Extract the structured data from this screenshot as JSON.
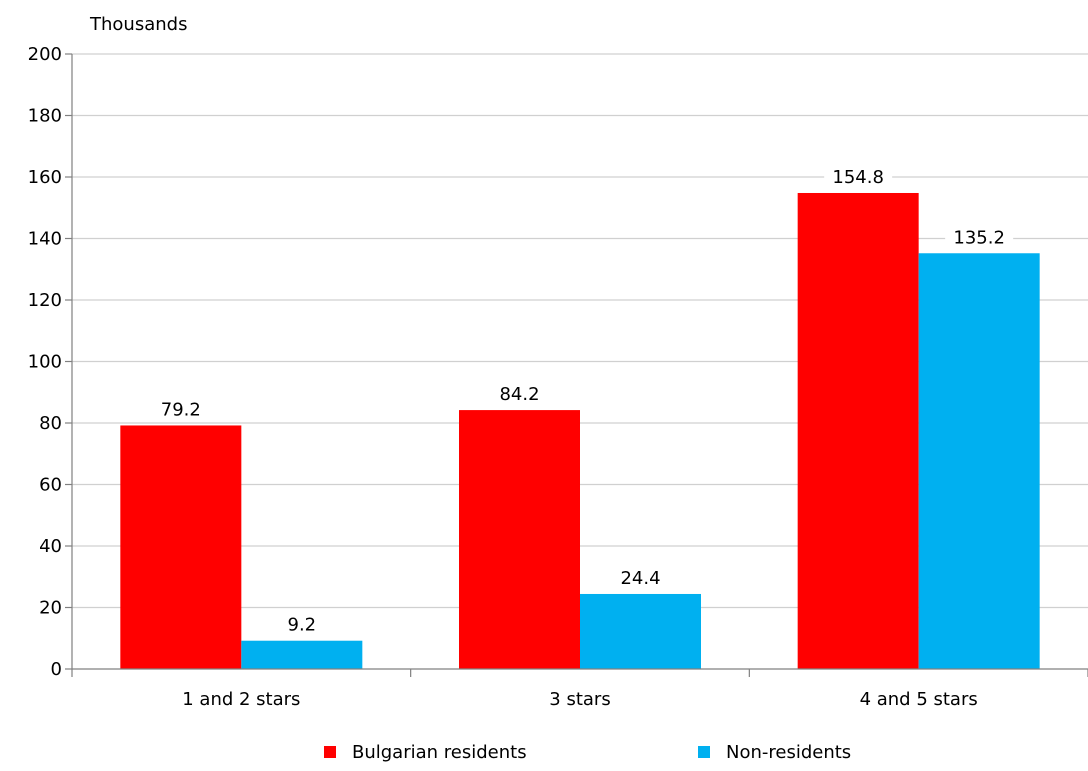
{
  "chart_data": {
    "type": "bar",
    "unit_label": "Thousands",
    "categories": [
      "1 and 2 stars",
      "3 stars",
      "4 and 5 stars"
    ],
    "series": [
      {
        "name": "Bulgarian residents",
        "color": "#ff0000",
        "values": [
          79.2,
          84.2,
          154.8
        ],
        "labels": [
          "79.2",
          "84.2",
          "154.8"
        ]
      },
      {
        "name": "Non-residents",
        "color": "#00b0f0",
        "values": [
          9.2,
          24.4,
          135.2
        ],
        "labels": [
          "9.2",
          "24.4",
          "135.2"
        ]
      }
    ],
    "ylim": [
      0,
      200
    ],
    "yticks": [
      0,
      20,
      40,
      60,
      80,
      100,
      120,
      140,
      160,
      180,
      200
    ],
    "grid": true,
    "legend_position": "bottom"
  }
}
